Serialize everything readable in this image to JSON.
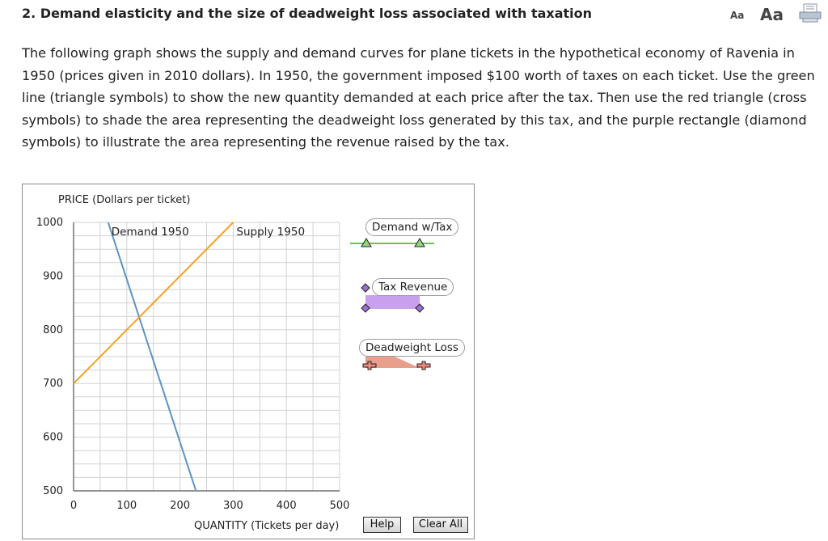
{
  "header": {
    "title": "2. Demand elasticity and the size of deadweight loss associated with taxation",
    "font_small": "Aa",
    "font_large": "Aa"
  },
  "instructions": "The following graph shows the supply and demand curves for plane tickets in the hypothetical economy of Ravenia in 1950 (prices given in 2010 dollars). In 1950, the government imposed $100 worth of taxes on each ticket. Use the green line (triangle symbols) to show the new quantity demanded at each price after the tax. Then use the red triangle (cross symbols) to shade the area representing the deadweight loss generated by this tax, and the purple rectangle (diamond symbols) to illustrate the area representing the revenue raised by the tax.",
  "tools": {
    "demand_tax": {
      "label": "Demand w/Tax",
      "color": "#66cc33"
    },
    "tax_revenue": {
      "label": "Tax Revenue",
      "color": "#c9a0ec"
    },
    "deadweight_loss": {
      "label": "Deadweight Loss",
      "color": "#e8a08c"
    }
  },
  "buttons": {
    "help": "Help",
    "clear_all": "Clear All"
  },
  "chart_data": {
    "type": "line",
    "ylabel": "PRICE (Dollars per ticket)",
    "xlabel": "QUANTITY (Tickets per day)",
    "xlim": [
      0,
      500
    ],
    "ylim": [
      500,
      1000
    ],
    "x_ticks": [
      0,
      100,
      200,
      300,
      400,
      500
    ],
    "y_ticks": [
      500,
      600,
      700,
      800,
      900,
      1000
    ],
    "grid": true,
    "series": [
      {
        "name": "Demand 1950",
        "color": "#5b93c7",
        "points": [
          [
            65,
            1000
          ],
          [
            230,
            500
          ]
        ]
      },
      {
        "name": "Supply 1950",
        "color": "#f5a21b",
        "points": [
          [
            0,
            700
          ],
          [
            300,
            1000
          ]
        ]
      }
    ]
  }
}
